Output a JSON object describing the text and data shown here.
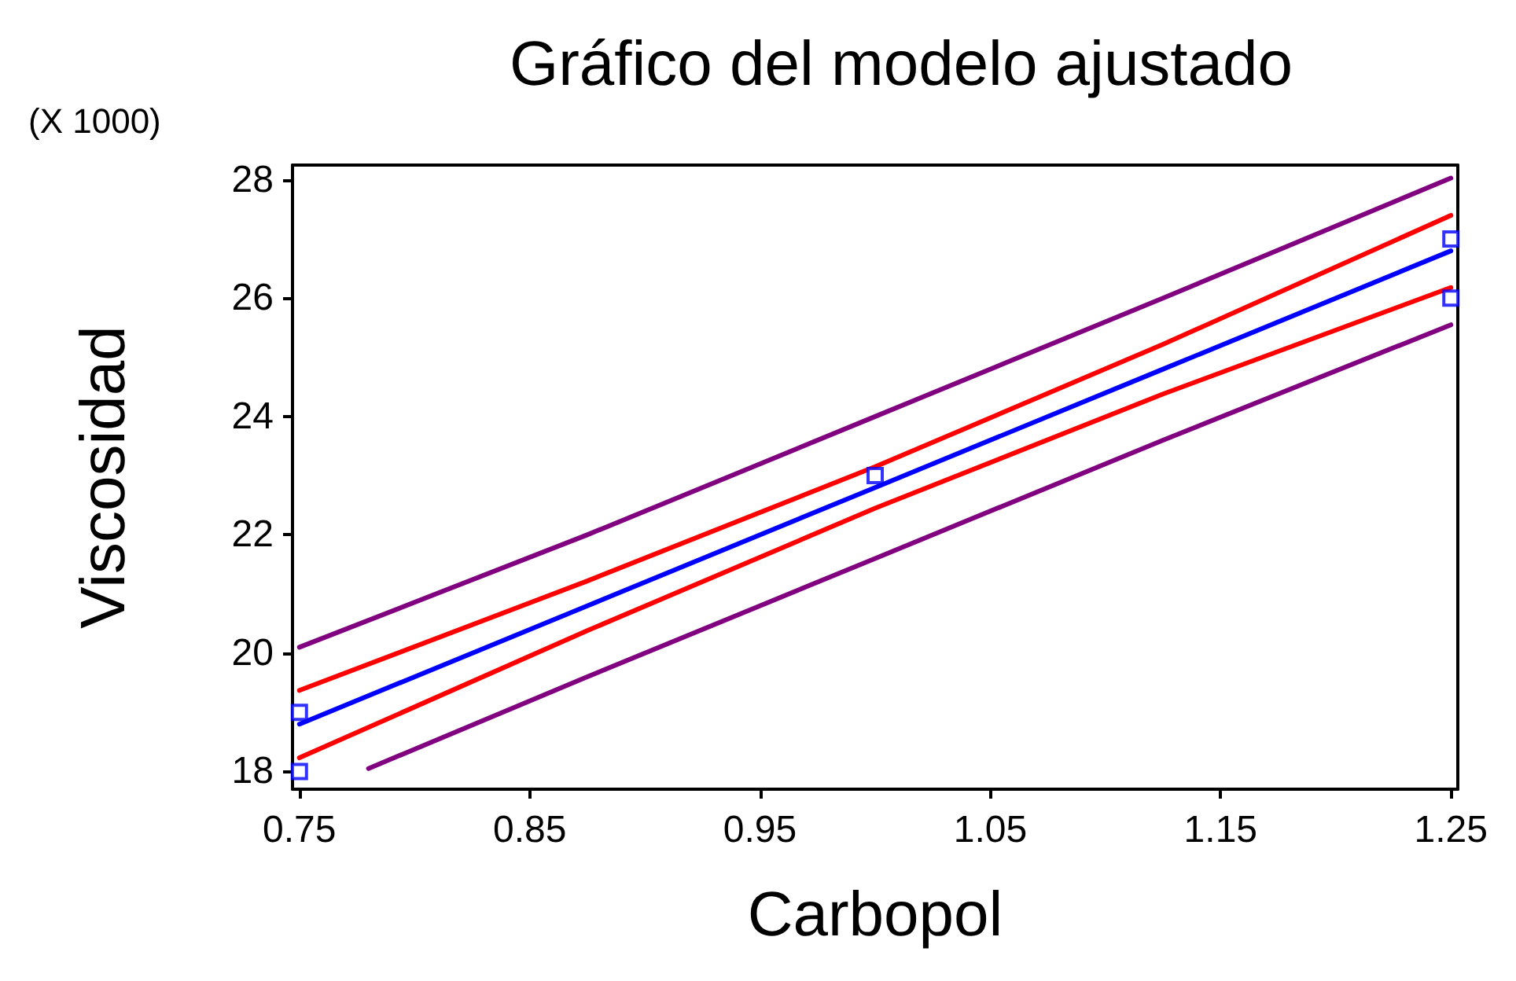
{
  "chart_data": {
    "type": "line",
    "title": "Gráfico del modelo ajustado",
    "xlabel": "Carbopol",
    "ylabel": "Viscosidad",
    "annotations": [
      "(X 1000)"
    ],
    "xlim": [
      0.747,
      1.253
    ],
    "xticks": [
      0.75,
      0.85,
      0.95,
      1.05,
      1.15,
      1.25
    ],
    "ylim": [
      17.7,
      28.25
    ],
    "yticks": [
      18,
      20,
      22,
      24,
      26,
      28
    ],
    "grid": false,
    "series": [
      {
        "color": "#800080",
        "marker": "none",
        "x": [
          0.75,
          0.875,
          1.0,
          1.125,
          1.25
        ],
        "values": [
          20.1,
          22.0,
          24.0,
          26.0,
          28.03
        ]
      },
      {
        "color": "#800080",
        "marker": "none",
        "x": [
          0.78,
          0.875,
          1.0,
          1.125,
          1.25
        ],
        "values": [
          18.05,
          19.6,
          21.6,
          23.6,
          25.55
        ]
      },
      {
        "color": "#ff0000",
        "marker": "none",
        "x": [
          0.75,
          0.875,
          1.0,
          1.125,
          1.25
        ],
        "values": [
          19.37,
          21.22,
          23.15,
          25.22,
          27.4
        ]
      },
      {
        "color": "#ff0000",
        "marker": "none",
        "x": [
          0.75,
          0.875,
          1.0,
          1.125,
          1.25
        ],
        "values": [
          18.23,
          20.38,
          22.45,
          24.38,
          26.18
        ]
      },
      {
        "color": "#0000ff",
        "marker": "none",
        "x": [
          0.75,
          0.875,
          1.0,
          1.125,
          1.25
        ],
        "values": [
          18.8,
          20.8,
          22.8,
          24.8,
          26.8
        ]
      },
      {
        "type": "scatter",
        "color": "#0000ff",
        "marker": "square",
        "x": [
          0.75,
          0.75,
          1.0,
          1.25,
          1.25
        ],
        "values": [
          19,
          18,
          23,
          27,
          26
        ]
      }
    ]
  }
}
